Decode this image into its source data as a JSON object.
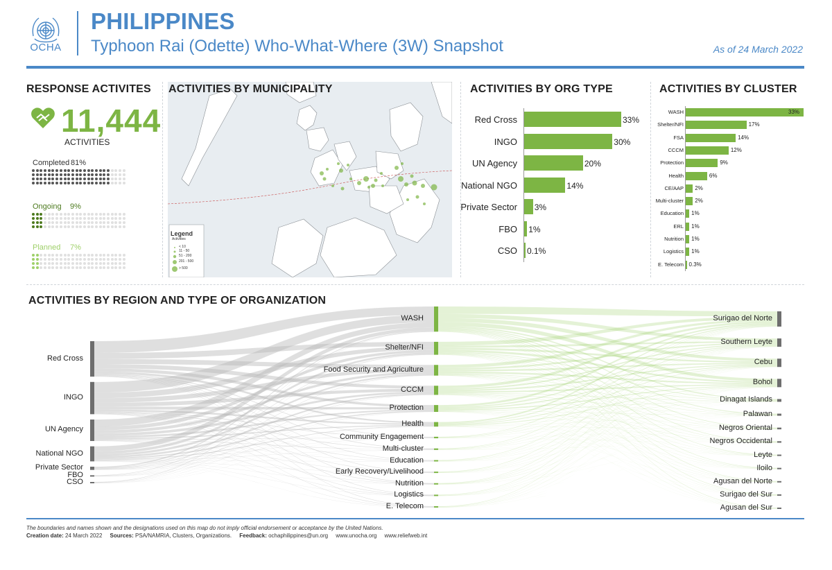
{
  "header": {
    "org": "OCHA",
    "title": "PHILIPPINES",
    "subtitle": "Typhoon Rai (Odette) Who-What-Where (3W) Snapshot",
    "as_of": "As of 24 March 2022",
    "brand_color": "#4a88c7"
  },
  "response": {
    "title": "RESPONSE ACTIVITES",
    "total": "11,444",
    "caption": "ACTIVITIES",
    "accent_color": "#7db544",
    "statuses": [
      {
        "label": "Completed",
        "pct": "81%",
        "share": 0.81,
        "color": "#555555"
      },
      {
        "label": "Ongoing",
        "pct": "9%",
        "share": 0.09,
        "color": "#4d7a1f"
      },
      {
        "label": "Planned",
        "pct": "7%",
        "share": 0.07,
        "color": "#9fd06a"
      }
    ]
  },
  "map": {
    "title": "ACTIVITIES BY MUNICIPALITY",
    "legend_title": "Legend",
    "legend_subtitle": "Activities",
    "legend_items": [
      "< 10",
      "11 - 50",
      "51 - 200",
      "201 - 500",
      "> 500"
    ]
  },
  "org_type": {
    "title": "ACTIVITIES BY ORG TYPE",
    "items": [
      {
        "label": "Red Cross",
        "pct": "33%",
        "value": 33
      },
      {
        "label": "INGO",
        "pct": "30%",
        "value": 30
      },
      {
        "label": "UN Agency",
        "pct": "20%",
        "value": 20
      },
      {
        "label": "National NGO",
        "pct": "14%",
        "value": 14
      },
      {
        "label": "Private Sector",
        "pct": "3%",
        "value": 3
      },
      {
        "label": "FBO",
        "pct": "1%",
        "value": 1
      },
      {
        "label": "CSO",
        "pct": "0.1%",
        "value": 0.1
      }
    ]
  },
  "cluster": {
    "title": "ACTIVITIES BY CLUSTER",
    "items": [
      {
        "label": "WASH",
        "pct": "33%",
        "value": 33
      },
      {
        "label": "Shelter/NFI",
        "pct": "17%",
        "value": 17
      },
      {
        "label": "FSA",
        "pct": "14%",
        "value": 14
      },
      {
        "label": "CCCM",
        "pct": "12%",
        "value": 12
      },
      {
        "label": "Protection",
        "pct": "9%",
        "value": 9
      },
      {
        "label": "Health",
        "pct": "6%",
        "value": 6
      },
      {
        "label": "CE/AAP",
        "pct": "2%",
        "value": 2
      },
      {
        "label": "Multi-cluster",
        "pct": "2%",
        "value": 2
      },
      {
        "label": "Education",
        "pct": "1%",
        "value": 1
      },
      {
        "label": "ERL",
        "pct": "1%",
        "value": 1
      },
      {
        "label": "Nutrition",
        "pct": "1%",
        "value": 1
      },
      {
        "label": "Logistics",
        "pct": "1%",
        "value": 1
      },
      {
        "label": "E. Telecom",
        "pct": "0.3%",
        "value": 0.3
      }
    ]
  },
  "sankey": {
    "title": "ACTIVITIES BY REGION AND TYPE OF ORGANIZATION",
    "orgs": [
      "Red Cross",
      "INGO",
      "UN Agency",
      "National NGO",
      "Private Sector",
      "FBO",
      "CSO"
    ],
    "clusters": [
      "WASH",
      "Shelter/NFI",
      "Food Security and Agriculture",
      "CCCM",
      "Protection",
      "Health",
      "Community Engagement",
      "Multi-cluster",
      "Education",
      "Early Recovery/Livelihood",
      "Nutrition",
      "Logistics",
      "E. Telecom"
    ],
    "regions": [
      "Surigao del Norte",
      "Southern Leyte",
      "Cebu",
      "Bohol",
      "Dinagat Islands",
      "Palawan",
      "Negros Oriental",
      "Negros Occidental",
      "Leyte",
      "Iloilo",
      "Agusan del Norte",
      "Surigao del Sur",
      "Agusan del Sur"
    ]
  },
  "footer": {
    "disclaimer": "The boundaries and names shown and the designations used on this map do not imply official endorsement or acceptance by the United Nations.",
    "creation_label": "Creation date:",
    "creation_date": "24 March 2022",
    "sources_label": "Sources:",
    "sources": "PSA/NAMRIA, Clusters, Organizations.",
    "feedback_label": "Feedback:",
    "feedback": "ochaphilippines@un.org",
    "link1": "www.unocha.org",
    "link2": "www.reliefweb.int"
  }
}
